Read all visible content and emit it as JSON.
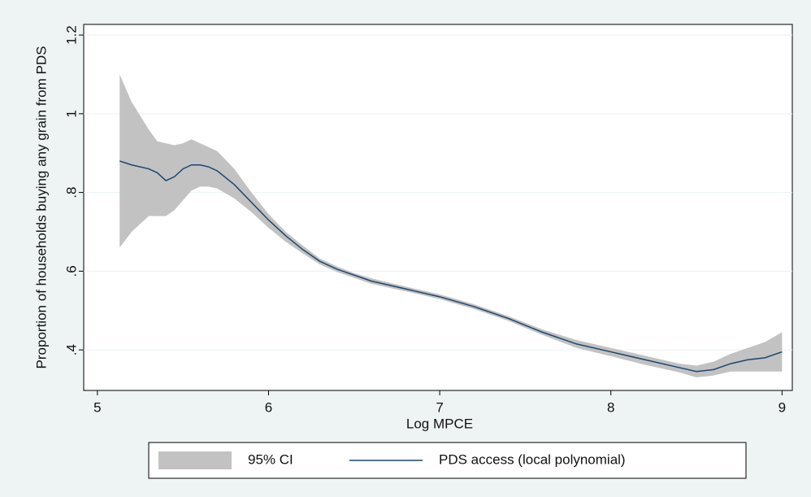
{
  "chart_data": {
    "type": "line",
    "x_label": "Log MPCE",
    "y_label": "Proportion of households buying any grain from PDS",
    "x": [
      5.13,
      5.2,
      5.3,
      5.35,
      5.4,
      5.45,
      5.5,
      5.55,
      5.6,
      5.65,
      5.7,
      5.8,
      5.9,
      6.0,
      6.1,
      6.2,
      6.3,
      6.4,
      6.5,
      6.6,
      6.8,
      7.0,
      7.2,
      7.4,
      7.6,
      7.8,
      8.0,
      8.2,
      8.4,
      8.5,
      8.6,
      8.7,
      8.8,
      8.9,
      9.0
    ],
    "series": [
      {
        "name": "95% CI",
        "color": "#c2c2c2",
        "upper": [
          1.1,
          1.03,
          0.96,
          0.93,
          0.925,
          0.92,
          0.925,
          0.935,
          0.925,
          0.915,
          0.905,
          0.86,
          0.8,
          0.745,
          0.7,
          0.665,
          0.632,
          0.612,
          0.595,
          0.582,
          0.561,
          0.541,
          0.516,
          0.486,
          0.452,
          0.425,
          0.405,
          0.385,
          0.365,
          0.36,
          0.37,
          0.39,
          0.405,
          0.42,
          0.445
        ],
        "lower": [
          0.66,
          0.7,
          0.74,
          0.74,
          0.74,
          0.755,
          0.78,
          0.805,
          0.815,
          0.815,
          0.81,
          0.785,
          0.75,
          0.71,
          0.675,
          0.645,
          0.617,
          0.598,
          0.583,
          0.568,
          0.549,
          0.529,
          0.504,
          0.474,
          0.438,
          0.405,
          0.384,
          0.362,
          0.343,
          0.33,
          0.335,
          0.345,
          0.345,
          0.345,
          0.345
        ]
      },
      {
        "name": "PDS access (local polynomial)",
        "color": "#1a476f",
        "values": [
          0.88,
          0.87,
          0.86,
          0.85,
          0.83,
          0.84,
          0.86,
          0.87,
          0.87,
          0.865,
          0.855,
          0.82,
          0.775,
          0.73,
          0.69,
          0.655,
          0.625,
          0.605,
          0.59,
          0.575,
          0.555,
          0.535,
          0.51,
          0.48,
          0.445,
          0.415,
          0.395,
          0.375,
          0.355,
          0.345,
          0.35,
          0.365,
          0.375,
          0.38,
          0.395
        ]
      }
    ],
    "xlim": [
      4.92,
      9.06
    ],
    "ylim": [
      0.297,
      1.227
    ],
    "xticks": [
      5,
      6,
      7,
      8,
      9
    ],
    "yticks": [
      {
        "value": 0.4,
        "label": ".4"
      },
      {
        "value": 0.6,
        "label": ".6"
      },
      {
        "value": 0.8,
        "label": ".8"
      },
      1,
      1.2
    ],
    "grid": true
  }
}
